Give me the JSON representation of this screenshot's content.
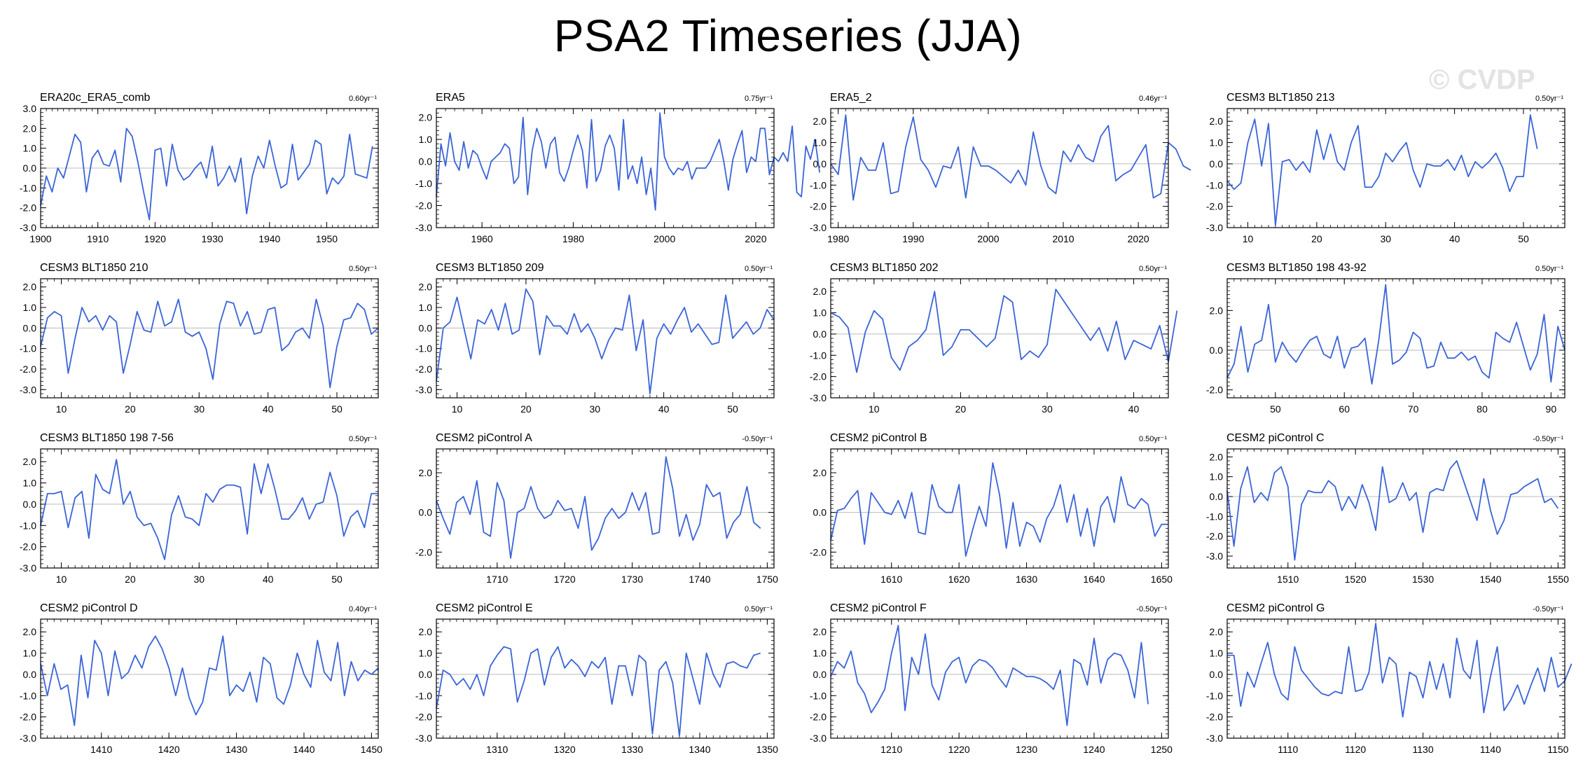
{
  "title": "PSA2 Timeseries (JJA)",
  "watermark": "© CVDP",
  "colors": {
    "series": "#3a64d8",
    "overlay": "#8a8a8a",
    "zero_line": "#bbbbbb",
    "frame": "#000000"
  },
  "chart_data": [
    {
      "type": "line",
      "title": "ERA20c_ERA5_comb",
      "trend": "0.60yr⁻¹",
      "xlim": [
        1900,
        1959
      ],
      "ylim": [
        -3.0,
        3.0
      ],
      "xticks": [
        1900,
        1910,
        1920,
        1930,
        1940,
        1950
      ],
      "yticks": [
        -3.0,
        -2.0,
        -1.0,
        0.0,
        1.0,
        2.0,
        3.0
      ],
      "x_start": 1900,
      "values": [
        -1.9,
        -0.4,
        -1.2,
        0.0,
        -0.5,
        0.6,
        1.7,
        1.3,
        -1.2,
        0.5,
        0.9,
        0.2,
        0.1,
        0.9,
        -0.7,
        2.0,
        1.6,
        0.3,
        -1.2,
        -2.6,
        0.9,
        1.0,
        -0.9,
        1.2,
        -0.1,
        -0.6,
        -0.4,
        0.0,
        0.3,
        -0.5,
        1.1,
        -0.9,
        -0.5,
        0.1,
        -0.7,
        0.5,
        -2.3,
        -0.4,
        0.6,
        0.0,
        1.4,
        0.1,
        -1.0,
        -0.8,
        1.2,
        -0.6,
        -0.2,
        0.2,
        1.4,
        1.2,
        -1.3,
        -0.5,
        -0.8,
        -0.4,
        1.7,
        -0.3,
        -0.4,
        -0.5,
        1.1
      ]
    },
    {
      "type": "line",
      "title": "ERA5",
      "trend": "0.75yr⁻¹",
      "xlim": [
        1950,
        2024
      ],
      "ylim": [
        -3.0,
        2.4
      ],
      "xticks": [
        1960,
        1980,
        2000,
        2020
      ],
      "yticks": [
        -3.0,
        -2.0,
        -1.0,
        0.0,
        1.0,
        2.0
      ],
      "x_start": 1950,
      "values": [
        -1.6,
        0.8,
        -0.2,
        1.3,
        0.0,
        -0.4,
        0.9,
        -0.3,
        0.5,
        0.3,
        -0.3,
        -0.8,
        0.0,
        0.2,
        0.4,
        0.8,
        0.6,
        -1.0,
        -0.7,
        2.0,
        -1.5,
        0.5,
        1.5,
        0.9,
        -0.3,
        0.8,
        1.1,
        -0.5,
        -0.9,
        -0.3,
        0.5,
        1.2,
        0.5,
        -1.2,
        1.9,
        -0.9,
        -0.4,
        0.7,
        1.2,
        0.6,
        -1.3,
        1.9,
        -0.8,
        -0.2,
        -1.0,
        0.2,
        -1.5,
        -0.3,
        -2.2,
        2.2,
        0.2,
        -0.3,
        -0.6,
        -0.3,
        -0.4,
        0.0,
        -0.8,
        -0.3,
        -0.3,
        -0.3,
        0.0,
        0.5,
        1.0,
        0.0,
        -1.3,
        0.1,
        0.8,
        1.4,
        -0.5,
        0.2,
        0.0,
        1.5,
        1.5,
        -0.6,
        0.2,
        0.0,
        0.4,
        0.0,
        1.6,
        -1.4,
        -1.6,
        0.7,
        0.1,
        1.0,
        -0.5
      ]
    },
    {
      "type": "line",
      "title": "ERA5_2",
      "trend": "0.46yr⁻¹",
      "xlim": [
        1979,
        2024
      ],
      "ylim": [
        -3.0,
        2.6
      ],
      "xticks": [
        1980,
        1990,
        2000,
        2010,
        2020
      ],
      "yticks": [
        -3.0,
        -2.0,
        -1.0,
        0.0,
        1.0,
        2.0
      ],
      "x_start": 1979,
      "values": [
        0.0,
        -0.5,
        2.3,
        -1.7,
        0.3,
        -0.3,
        -0.3,
        1.0,
        -1.4,
        -1.3,
        0.8,
        2.2,
        0.2,
        -0.3,
        -1.1,
        -0.1,
        -0.2,
        0.8,
        -1.6,
        0.8,
        -0.1,
        -0.1,
        -0.3,
        -0.6,
        -0.9,
        -0.3,
        -1.0,
        1.5,
        -0.1,
        -1.1,
        -1.4,
        0.6,
        0.1,
        0.9,
        0.3,
        0.1,
        1.3,
        1.8,
        -0.8,
        -0.5,
        -0.3,
        0.3,
        0.9,
        -1.6,
        -1.4,
        1.0,
        0.7,
        -0.1,
        -0.3
      ]
    },
    {
      "type": "line",
      "title": "CESM3 BLT1850 213",
      "trend": "0.50yr⁻¹",
      "xlim": [
        7,
        56
      ],
      "ylim": [
        -3.0,
        2.6
      ],
      "xticks": [
        10,
        20,
        30,
        40,
        50
      ],
      "yticks": [
        -3.0,
        -2.0,
        -1.0,
        0.0,
        1.0,
        2.0
      ],
      "x_start": 7,
      "values": [
        -0.8,
        -1.2,
        -0.9,
        1.0,
        2.1,
        -0.1,
        1.9,
        -2.9,
        0.1,
        0.2,
        -0.3,
        0.1,
        -0.4,
        1.6,
        0.2,
        1.4,
        0.1,
        -0.3,
        1.0,
        1.8,
        -1.1,
        -1.1,
        -0.6,
        0.5,
        0.1,
        0.6,
        1.0,
        -0.3,
        -1.1,
        0.0,
        -0.1,
        -0.1,
        0.2,
        -0.3,
        0.4,
        -0.6,
        0.1,
        -0.2,
        0.1,
        0.5,
        -0.2,
        -1.3,
        -0.6,
        -0.6,
        2.3,
        0.7
      ]
    },
    {
      "type": "line",
      "title": "CESM3 BLT1850 210",
      "trend": "0.50yr⁻¹",
      "xlim": [
        7,
        56
      ],
      "ylim": [
        -3.4,
        2.4
      ],
      "xticks": [
        10,
        20,
        30,
        40,
        50
      ],
      "yticks": [
        -3.0,
        -2.0,
        -1.0,
        0.0,
        1.0,
        2.0
      ],
      "x_start": 7,
      "values": [
        -0.9,
        0.5,
        0.8,
        0.6,
        -2.2,
        -0.5,
        1.0,
        0.3,
        0.6,
        -0.1,
        0.6,
        0.3,
        -2.2,
        -0.8,
        0.8,
        -0.1,
        -0.2,
        1.3,
        0.1,
        0.3,
        1.4,
        -0.2,
        -0.4,
        -0.2,
        -1.0,
        -2.5,
        0.2,
        1.3,
        1.2,
        0.1,
        0.8,
        -0.3,
        -0.2,
        0.9,
        1.0,
        -1.1,
        -0.8,
        -0.2,
        0.0,
        -0.5,
        1.4,
        0.1,
        -2.9,
        -0.9,
        0.4,
        0.5,
        1.2,
        0.9,
        -0.3,
        0.0
      ]
    },
    {
      "type": "line",
      "title": "CESM3 BLT1850 209",
      "trend": "0.50yr⁻¹",
      "xlim": [
        7,
        56
      ],
      "ylim": [
        -3.4,
        2.4
      ],
      "xticks": [
        10,
        20,
        30,
        40,
        50
      ],
      "yticks": [
        -3.0,
        -2.0,
        -1.0,
        0.0,
        1.0,
        2.0
      ],
      "x_start": 7,
      "values": [
        -2.6,
        0.0,
        0.3,
        1.5,
        0.0,
        -1.5,
        0.4,
        0.2,
        0.9,
        -0.1,
        1.2,
        -0.3,
        -0.1,
        1.9,
        1.3,
        -1.3,
        0.6,
        0.1,
        0.1,
        -0.3,
        0.7,
        -0.2,
        0.2,
        -0.5,
        -1.5,
        -0.6,
        0.0,
        -0.1,
        1.6,
        -1.1,
        0.4,
        -3.2,
        -0.5,
        0.2,
        -0.3,
        0.4,
        1.0,
        -0.2,
        0.2,
        -0.3,
        -0.8,
        -0.7,
        1.6,
        -0.5,
        -0.1,
        0.3,
        -0.3,
        0.0,
        0.9,
        0.4
      ]
    },
    {
      "type": "line",
      "title": "CESM3 BLT1850 202",
      "trend": "0.50yr⁻¹",
      "xlim": [
        5,
        44
      ],
      "ylim": [
        -3.0,
        2.6
      ],
      "xticks": [
        10,
        20,
        30,
        40
      ],
      "yticks": [
        -3.0,
        -2.0,
        -1.0,
        0.0,
        1.0,
        2.0
      ],
      "x_start": 5,
      "values": [
        1.0,
        0.8,
        0.3,
        -1.8,
        0.1,
        1.1,
        0.7,
        -1.1,
        -1.7,
        -0.6,
        -0.3,
        0.2,
        2.0,
        -1.0,
        -0.6,
        0.2,
        0.2,
        -0.2,
        -0.6,
        -0.2,
        1.8,
        1.5,
        -1.2,
        -0.8,
        -1.1,
        -0.5,
        2.1,
        1.5,
        0.9,
        0.3,
        -0.3,
        0.3,
        -0.8,
        0.6,
        -1.2,
        -0.3,
        -0.5,
        -0.7,
        0.4,
        -1.3,
        1.1
      ]
    },
    {
      "type": "line",
      "title": "CESM3 BLT1850 198 43-92",
      "trend": "0.50yr⁻¹",
      "xlim": [
        43,
        92
      ],
      "ylim": [
        -2.4,
        3.6
      ],
      "xticks": [
        50,
        60,
        70,
        80,
        90
      ],
      "yticks": [
        -2.0,
        0.0,
        2.0
      ],
      "x_start": 43,
      "values": [
        -1.4,
        -0.7,
        1.2,
        -1.1,
        0.3,
        0.5,
        2.3,
        -0.6,
        0.4,
        -0.2,
        -0.6,
        0.0,
        0.5,
        0.7,
        -0.2,
        -0.4,
        0.7,
        -0.9,
        0.1,
        0.2,
        0.6,
        -1.7,
        0.5,
        3.3,
        -0.7,
        -0.5,
        -0.1,
        0.9,
        0.6,
        -0.9,
        -0.8,
        0.4,
        -0.4,
        -0.4,
        -0.1,
        -0.5,
        -0.3,
        -1.1,
        -1.4,
        0.9,
        0.6,
        0.4,
        1.4,
        0.2,
        -1.0,
        -0.2,
        1.8,
        -1.6,
        1.2,
        0.0
      ]
    },
    {
      "type": "line",
      "title": "CESM3 BLT1850 198 7-56",
      "trend": "0.50yr⁻¹",
      "xlim": [
        7,
        56
      ],
      "ylim": [
        -3.0,
        2.6
      ],
      "xticks": [
        10,
        20,
        30,
        40,
        50
      ],
      "yticks": [
        -3.0,
        -2.0,
        -1.0,
        0.0,
        1.0,
        2.0
      ],
      "x_start": 7,
      "values": [
        -1.0,
        0.5,
        0.5,
        0.6,
        -1.1,
        0.3,
        0.6,
        -1.6,
        1.4,
        0.7,
        0.5,
        2.1,
        0.0,
        0.6,
        -0.6,
        -1.0,
        -0.9,
        -1.6,
        -2.6,
        -0.5,
        0.4,
        -0.6,
        -0.7,
        -1.0,
        0.5,
        0.1,
        0.7,
        0.9,
        0.9,
        0.8,
        -1.4,
        1.9,
        0.5,
        1.9,
        0.7,
        -0.7,
        -0.7,
        -0.3,
        0.3,
        -0.7,
        0.0,
        0.1,
        1.5,
        0.4,
        -1.5,
        -0.6,
        -0.3,
        -1.1,
        0.5,
        0.5
      ]
    },
    {
      "type": "line",
      "title": "CESM2 piControl A",
      "trend": "-0.50yr⁻¹",
      "xlim": [
        1701,
        1751
      ],
      "ylim": [
        -2.8,
        3.2
      ],
      "xticks": [
        1710,
        1720,
        1730,
        1740,
        1750
      ],
      "yticks": [
        -2.0,
        0.0,
        2.0
      ],
      "x_start": 1701,
      "values": [
        0.6,
        -0.3,
        -1.1,
        0.5,
        0.8,
        -0.1,
        1.6,
        -1.0,
        -1.2,
        1.5,
        0.6,
        -2.3,
        0.0,
        0.2,
        1.3,
        0.2,
        -0.3,
        -0.1,
        0.6,
        0.1,
        0.2,
        -0.8,
        0.8,
        -1.9,
        -1.3,
        -0.3,
        0.2,
        -0.3,
        0.0,
        1.0,
        0.1,
        1.0,
        -1.1,
        -1.0,
        2.8,
        1.2,
        -1.2,
        -0.1,
        -1.4,
        -0.6,
        1.4,
        0.8,
        1.0,
        -1.3,
        -0.5,
        -0.1,
        1.3,
        -0.5,
        -0.8
      ]
    },
    {
      "type": "line",
      "title": "CESM2 piControl B",
      "trend": "0.50yr⁻¹",
      "xlim": [
        1601,
        1651
      ],
      "ylim": [
        -2.8,
        3.2
      ],
      "xticks": [
        1610,
        1620,
        1630,
        1640,
        1650
      ],
      "yticks": [
        -2.0,
        0.0,
        2.0
      ],
      "x_start": 1601,
      "values": [
        -1.4,
        0.1,
        0.2,
        0.7,
        1.1,
        -1.6,
        1.0,
        0.5,
        0.0,
        -0.1,
        0.6,
        -0.3,
        1.0,
        -1.0,
        -1.1,
        1.4,
        0.3,
        0.0,
        0.0,
        1.4,
        -2.2,
        -0.9,
        0.3,
        -0.7,
        2.5,
        0.9,
        -1.8,
        0.5,
        -1.7,
        -0.5,
        -0.7,
        -1.5,
        -0.3,
        0.3,
        1.4,
        -0.5,
        0.9,
        -1.2,
        0.2,
        -1.7,
        0.3,
        0.8,
        -0.5,
        1.8,
        0.4,
        0.2,
        0.7,
        0.4,
        -1.2,
        -0.6,
        -0.6
      ]
    },
    {
      "type": "line",
      "title": "CESM2 piControl C",
      "trend": "-0.50yr⁻¹",
      "xlim": [
        1501,
        1551
      ],
      "ylim": [
        -3.6,
        2.4
      ],
      "xticks": [
        1510,
        1520,
        1530,
        1540,
        1550
      ],
      "yticks": [
        -3.0,
        -2.0,
        -1.0,
        0.0,
        1.0,
        2.0
      ],
      "x_start": 1501,
      "values": [
        0.3,
        -2.5,
        0.4,
        1.5,
        -0.3,
        0.2,
        -0.2,
        1.2,
        1.5,
        0.5,
        -3.2,
        -0.4,
        0.3,
        0.2,
        0.2,
        0.8,
        0.5,
        -0.7,
        0.0,
        -0.6,
        0.6,
        -0.3,
        -1.7,
        1.5,
        -0.3,
        -0.1,
        0.7,
        -0.2,
        0.2,
        -1.8,
        0.2,
        0.4,
        0.3,
        1.4,
        1.8,
        0.8,
        -0.2,
        -1.2,
        0.9,
        -0.7,
        -1.9,
        -1.2,
        0.1,
        0.2,
        0.5,
        0.7,
        0.9,
        -0.3,
        -0.1,
        -0.6
      ]
    },
    {
      "type": "line",
      "title": "CESM2 piControl D",
      "trend": "0.40yr⁻¹",
      "xlim": [
        1401,
        1451
      ],
      "ylim": [
        -3.0,
        2.6
      ],
      "xticks": [
        1410,
        1420,
        1430,
        1440,
        1450
      ],
      "yticks": [
        -3.0,
        -2.0,
        -1.0,
        0.0,
        1.0,
        2.0
      ],
      "x_start": 1401,
      "values": [
        0.5,
        -1.0,
        0.5,
        -0.7,
        -0.5,
        -2.4,
        0.9,
        -1.1,
        1.6,
        1.0,
        -1.0,
        1.1,
        -0.2,
        0.1,
        0.9,
        0.3,
        1.3,
        1.8,
        1.2,
        0.3,
        -1.0,
        0.3,
        -1.1,
        -1.9,
        -1.3,
        0.3,
        0.2,
        1.8,
        -1.0,
        -0.5,
        -0.8,
        0.1,
        -1.3,
        0.8,
        0.5,
        -1.1,
        -1.4,
        -0.5,
        1.0,
        0.0,
        -0.6,
        1.6,
        0.1,
        -0.3,
        1.5,
        -1.0,
        0.6,
        -0.3,
        0.2,
        0.0,
        0.3
      ]
    },
    {
      "type": "line",
      "title": "CESM2 piControl E",
      "trend": "0.50yr⁻¹",
      "xlim": [
        1301,
        1351
      ],
      "ylim": [
        -3.0,
        2.6
      ],
      "xticks": [
        1310,
        1320,
        1330,
        1340,
        1350
      ],
      "yticks": [
        -3.0,
        -2.0,
        -1.0,
        0.0,
        1.0,
        2.0
      ],
      "x_start": 1301,
      "values": [
        -1.6,
        0.2,
        0.0,
        -0.5,
        -0.2,
        -0.7,
        0.0,
        -1.0,
        0.4,
        0.9,
        1.3,
        1.2,
        -1.3,
        -0.3,
        1.0,
        1.2,
        -0.5,
        0.8,
        1.3,
        0.3,
        0.7,
        0.4,
        -0.1,
        0.6,
        0.3,
        0.8,
        -1.4,
        0.4,
        0.4,
        -1.0,
        0.9,
        0.6,
        -2.8,
        0.2,
        0.6,
        -0.4,
        -2.9,
        1.0,
        -0.2,
        -1.4,
        1.0,
        0.0,
        -0.6,
        0.5,
        0.6,
        0.4,
        0.3,
        0.9,
        1.0
      ]
    },
    {
      "type": "line",
      "title": "CESM2 piControl F",
      "trend": "-0.50yr⁻¹",
      "xlim": [
        1201,
        1251
      ],
      "ylim": [
        -3.0,
        2.6
      ],
      "xticks": [
        1210,
        1220,
        1230,
        1240,
        1250
      ],
      "yticks": [
        -3.0,
        -2.0,
        -1.0,
        0.0,
        1.0,
        2.0
      ],
      "x_start": 1201,
      "values": [
        -0.1,
        0.6,
        0.3,
        1.1,
        -0.4,
        -0.9,
        -1.8,
        -1.3,
        -0.7,
        1.0,
        2.3,
        -1.7,
        0.8,
        0.0,
        1.9,
        -0.5,
        -1.2,
        0.1,
        0.6,
        0.8,
        -0.4,
        0.4,
        0.7,
        0.6,
        0.3,
        -0.2,
        -0.6,
        0.3,
        0.1,
        -0.1,
        -0.1,
        -0.2,
        -0.4,
        -0.7,
        0.2,
        -2.4,
        0.7,
        0.5,
        -0.5,
        1.7,
        -0.4,
        0.7,
        1.0,
        0.9,
        0.2,
        -1.1,
        1.5,
        -1.4
      ]
    },
    {
      "type": "line",
      "title": "CESM2 piControl G",
      "trend": "-0.50yr⁻¹",
      "xlim": [
        1101,
        1151
      ],
      "ylim": [
        -3.0,
        2.6
      ],
      "xticks": [
        1110,
        1120,
        1130,
        1140,
        1150
      ],
      "yticks": [
        -3.0,
        -2.0,
        -1.0,
        0.0,
        1.0,
        2.0
      ],
      "x_start": 1101,
      "values": [
        0.9,
        0.9,
        -1.5,
        0.1,
        -0.6,
        0.5,
        1.5,
        0.0,
        -0.9,
        -1.2,
        1.3,
        0.2,
        -0.2,
        -0.6,
        -0.9,
        -1.0,
        -0.8,
        -0.9,
        1.3,
        -0.8,
        -0.7,
        0.1,
        2.4,
        -0.4,
        0.8,
        0.5,
        -2.0,
        0.1,
        -0.1,
        -1.1,
        0.6,
        -0.7,
        0.5,
        -1.1,
        1.7,
        0.2,
        -0.2,
        1.6,
        -1.8,
        -0.1,
        1.3,
        -1.7,
        -1.2,
        -0.5,
        -1.4,
        -0.5,
        0.3,
        -0.8,
        0.8,
        -0.6,
        -0.3,
        0.5
      ]
    }
  ]
}
